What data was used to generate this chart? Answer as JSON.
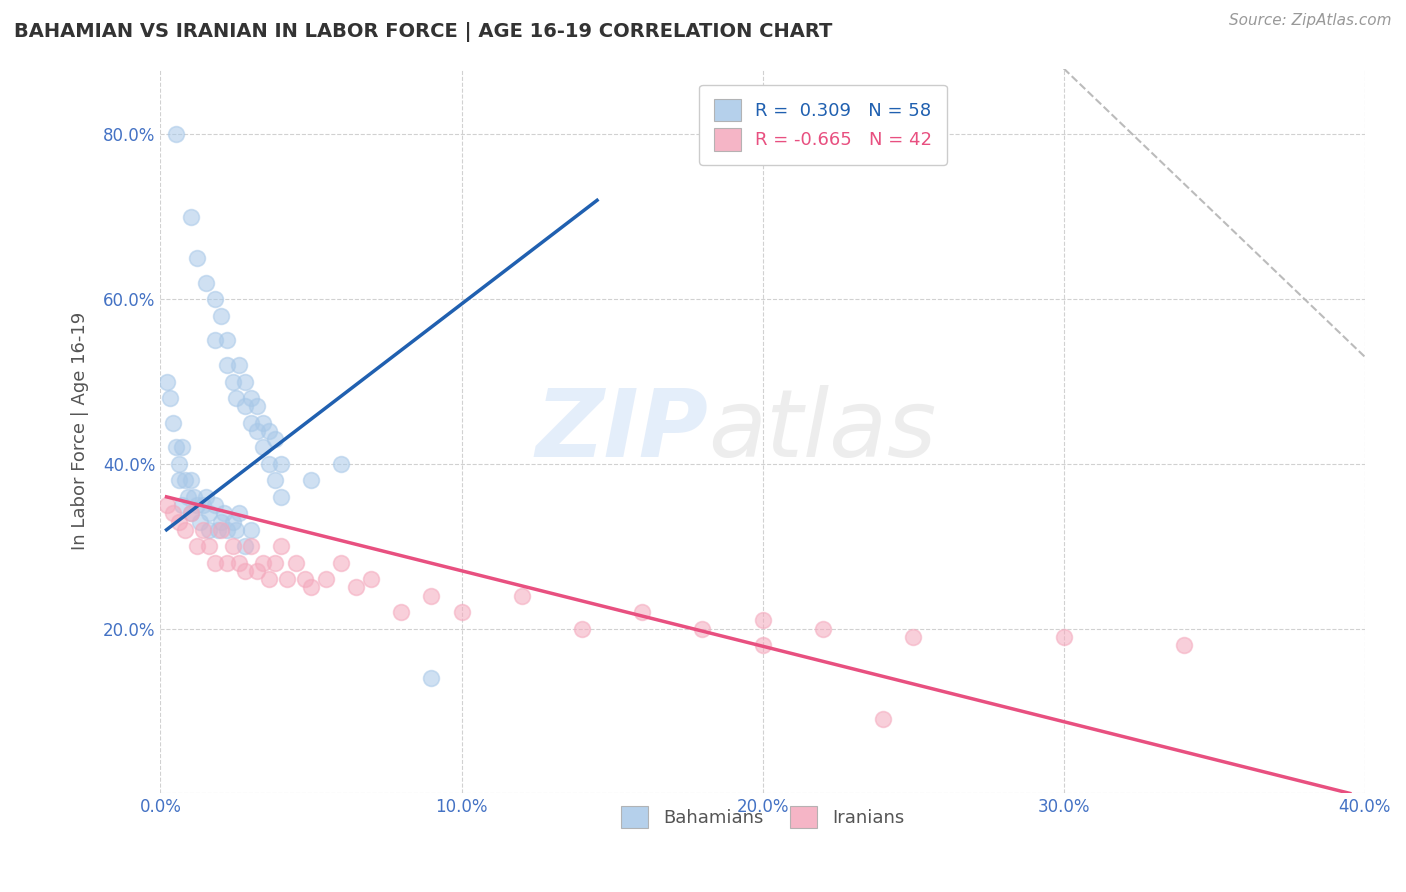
{
  "title": "BAHAMIAN VS IRANIAN IN LABOR FORCE | AGE 16-19 CORRELATION CHART",
  "source": "Source: ZipAtlas.com",
  "ylabel": "In Labor Force | Age 16-19",
  "xlim": [
    0.0,
    0.4
  ],
  "ylim": [
    0.0,
    0.88
  ],
  "xticks": [
    0.0,
    0.1,
    0.2,
    0.3,
    0.4
  ],
  "yticks": [
    0.0,
    0.2,
    0.4,
    0.6,
    0.8
  ],
  "xticklabels": [
    "0.0%",
    "10.0%",
    "20.0%",
    "30.0%",
    "40.0%"
  ],
  "yticklabels": [
    "",
    "20.0%",
    "40.0%",
    "60.0%",
    "80.0%"
  ],
  "legend_r_blue": "0.309",
  "legend_n_blue": "58",
  "legend_r_pink": "-0.665",
  "legend_n_pink": "42",
  "blue_color": "#a8c8e8",
  "pink_color": "#f4a8bc",
  "blue_line_color": "#2060b0",
  "pink_line_color": "#e85080",
  "background_color": "#ffffff",
  "grid_color": "#cccccc",
  "blue_trend_x": [
    0.002,
    0.145
  ],
  "blue_trend_y": [
    0.32,
    0.72
  ],
  "pink_trend_x": [
    0.002,
    0.395
  ],
  "pink_trend_y": [
    0.36,
    0.0
  ],
  "dash_trend_x": [
    0.3,
    0.4
  ],
  "dash_trend_y": [
    0.88,
    0.53
  ],
  "bahamian_x": [
    0.005,
    0.01,
    0.012,
    0.015,
    0.018,
    0.018,
    0.02,
    0.022,
    0.022,
    0.024,
    0.025,
    0.026,
    0.028,
    0.028,
    0.03,
    0.03,
    0.032,
    0.032,
    0.034,
    0.034,
    0.036,
    0.036,
    0.038,
    0.038,
    0.04,
    0.04,
    0.002,
    0.003,
    0.004,
    0.005,
    0.006,
    0.006,
    0.007,
    0.007,
    0.008,
    0.009,
    0.01,
    0.01,
    0.011,
    0.012,
    0.013,
    0.014,
    0.015,
    0.016,
    0.016,
    0.018,
    0.019,
    0.02,
    0.021,
    0.022,
    0.024,
    0.025,
    0.026,
    0.028,
    0.03,
    0.05,
    0.06,
    0.09
  ],
  "bahamian_y": [
    0.8,
    0.7,
    0.65,
    0.62,
    0.6,
    0.55,
    0.58,
    0.55,
    0.52,
    0.5,
    0.48,
    0.52,
    0.47,
    0.5,
    0.48,
    0.45,
    0.47,
    0.44,
    0.45,
    0.42,
    0.44,
    0.4,
    0.43,
    0.38,
    0.4,
    0.36,
    0.5,
    0.48,
    0.45,
    0.42,
    0.4,
    0.38,
    0.42,
    0.35,
    0.38,
    0.36,
    0.38,
    0.34,
    0.36,
    0.35,
    0.33,
    0.35,
    0.36,
    0.34,
    0.32,
    0.35,
    0.32,
    0.33,
    0.34,
    0.32,
    0.33,
    0.32,
    0.34,
    0.3,
    0.32,
    0.38,
    0.4,
    0.14
  ],
  "iranian_x": [
    0.002,
    0.004,
    0.006,
    0.008,
    0.01,
    0.012,
    0.014,
    0.016,
    0.018,
    0.02,
    0.022,
    0.024,
    0.026,
    0.028,
    0.03,
    0.032,
    0.034,
    0.036,
    0.038,
    0.04,
    0.042,
    0.045,
    0.048,
    0.05,
    0.055,
    0.06,
    0.065,
    0.07,
    0.08,
    0.09,
    0.1,
    0.12,
    0.14,
    0.16,
    0.18,
    0.2,
    0.22,
    0.25,
    0.3,
    0.34,
    0.2,
    0.24
  ],
  "iranian_y": [
    0.35,
    0.34,
    0.33,
    0.32,
    0.34,
    0.3,
    0.32,
    0.3,
    0.28,
    0.32,
    0.28,
    0.3,
    0.28,
    0.27,
    0.3,
    0.27,
    0.28,
    0.26,
    0.28,
    0.3,
    0.26,
    0.28,
    0.26,
    0.25,
    0.26,
    0.28,
    0.25,
    0.26,
    0.22,
    0.24,
    0.22,
    0.24,
    0.2,
    0.22,
    0.2,
    0.21,
    0.2,
    0.19,
    0.19,
    0.18,
    0.18,
    0.09
  ]
}
